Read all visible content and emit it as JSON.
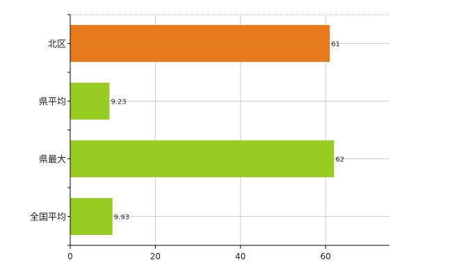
{
  "chart_data": {
    "type": "bar",
    "orientation": "horizontal",
    "categories": [
      "北区",
      "県平均",
      "県最大",
      "全国平均"
    ],
    "values": [
      61,
      9.23,
      62,
      9.93
    ],
    "value_labels": [
      "61",
      "9.23",
      "62",
      "9.93"
    ],
    "bar_colors": [
      "#e87a1e",
      "#99cc22",
      "#99cc22",
      "#99cc22"
    ],
    "xlim": [
      0,
      75
    ],
    "xticks": [
      0,
      20,
      40,
      60
    ],
    "grid": true,
    "title": "",
    "xlabel": "",
    "ylabel": ""
  }
}
